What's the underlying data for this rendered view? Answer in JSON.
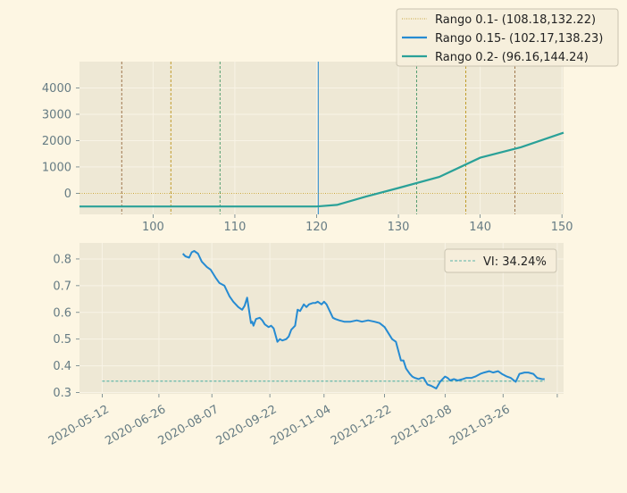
{
  "colors": {
    "background": "#fdf6e3",
    "axes_bg": "#eee8d5",
    "grid": "#f8f3e6",
    "tick_text": "#657b83",
    "legend_bg": "#f5eedb",
    "legend_border": "#c9c3b0",
    "blue": "#268bd2",
    "teal": "#2aa198",
    "olive": "#b58900",
    "brown": "#8b5a2b",
    "green": "#2e8b57"
  },
  "chart_data": [
    {
      "type": "line",
      "title": "",
      "xlabel": "",
      "ylabel": "",
      "xlim": [
        91,
        150.2
      ],
      "ylim": [
        -800,
        5000
      ],
      "xticks": [
        100,
        110,
        120,
        130,
        140,
        150
      ],
      "yticks": [
        0,
        1000,
        2000,
        3000,
        4000
      ],
      "grid": true,
      "legend": {
        "placement": "top-right"
      },
      "series": [
        {
          "name": "Rango 0.1- (108.18,132.22)",
          "color": "#b58900",
          "style": "dotted",
          "x": [
            91,
            150.2
          ],
          "y": [
            0,
            0
          ]
        },
        {
          "name": "Rango 0.15- (102.17,138.23)",
          "color": "#268bd2",
          "style": "solid",
          "x": [],
          "y": []
        },
        {
          "name": "Rango 0.2- (96.16,144.24)",
          "color": "#2aa198",
          "style": "solid",
          "x": [
            91,
            120,
            122.5,
            126,
            130,
            135,
            140,
            145,
            150.2
          ],
          "y": [
            -500,
            -500,
            -440,
            -130,
            200,
            620,
            1350,
            1750,
            2300
          ]
        }
      ],
      "vlines": [
        {
          "x": 96.16,
          "color": "#8b5a2b",
          "style": "dashed"
        },
        {
          "x": 102.17,
          "color": "#b58900",
          "style": "dashed"
        },
        {
          "x": 108.18,
          "color": "#2e8b57",
          "style": "dashed"
        },
        {
          "x": 120.2,
          "color": "#268bd2",
          "style": "solid"
        },
        {
          "x": 132.22,
          "color": "#2e8b57",
          "style": "dashed"
        },
        {
          "x": 138.23,
          "color": "#b58900",
          "style": "dashed"
        },
        {
          "x": 144.24,
          "color": "#8b5a2b",
          "style": "dashed"
        }
      ]
    },
    {
      "type": "line",
      "title": "",
      "xlabel": "",
      "ylabel": "",
      "xlim": [
        "2020-04-24",
        "2021-05-13"
      ],
      "ylim": [
        0.295,
        0.86
      ],
      "xticks": [
        "2020-05-12",
        "2020-06-26",
        "2020-08-07",
        "2020-09-22",
        "2020-11-04",
        "2020-12-22",
        "2021-02-08",
        "2021-03-26",
        ""
      ],
      "extra_xtick_date": "2021-05-08",
      "yticks": [
        0.3,
        0.4,
        0.5,
        0.6,
        0.7,
        0.8
      ],
      "grid": true,
      "legend": {
        "placement": "top-right"
      },
      "reference_line": {
        "name": "VI: 34.24%",
        "value": 0.3424,
        "x": [
          "2020-05-12",
          "2021-04-28"
        ],
        "color": "#2aa198",
        "style": "dashed"
      },
      "series": [
        {
          "name": "",
          "color": "#268bd2",
          "x": [
            "2020-07-15",
            "2020-07-17",
            "2020-07-20",
            "2020-07-22",
            "2020-07-24",
            "2020-07-27",
            "2020-07-30",
            "2020-08-03",
            "2020-08-06",
            "2020-08-10",
            "2020-08-13",
            "2020-08-17",
            "2020-08-19",
            "2020-08-21",
            "2020-08-24",
            "2020-08-26",
            "2020-08-28",
            "2020-08-31",
            "2020-09-02",
            "2020-09-04",
            "2020-09-07",
            "2020-09-08",
            "2020-09-09",
            "2020-09-11",
            "2020-09-14",
            "2020-09-16",
            "2020-09-18",
            "2020-09-21",
            "2020-09-23",
            "2020-09-25",
            "2020-09-28",
            "2020-09-30",
            "2020-10-02",
            "2020-10-05",
            "2020-10-07",
            "2020-10-09",
            "2020-10-12",
            "2020-10-14",
            "2020-10-16",
            "2020-10-19",
            "2020-10-21",
            "2020-10-23",
            "2020-10-26",
            "2020-10-28",
            "2020-10-30",
            "2020-11-02",
            "2020-11-04",
            "2020-11-06",
            "2020-11-09",
            "2020-11-11",
            "2020-11-13",
            "2020-11-16",
            "2020-11-20",
            "2020-11-25",
            "2020-11-30",
            "2020-12-04",
            "2020-12-09",
            "2020-12-14",
            "2020-12-18",
            "2020-12-22",
            "2020-12-28",
            "2020-12-31",
            "2021-01-04",
            "2021-01-06",
            "2021-01-08",
            "2021-01-11",
            "2021-01-13",
            "2021-01-15",
            "2021-01-18",
            "2021-01-20",
            "2021-01-22",
            "2021-01-25",
            "2021-01-28",
            "2021-02-01",
            "2021-02-04",
            "2021-02-08",
            "2021-02-10",
            "2021-02-12",
            "2021-02-15",
            "2021-02-18",
            "2021-02-22",
            "2021-02-25",
            "2021-03-01",
            "2021-03-04",
            "2021-03-08",
            "2021-03-11",
            "2021-03-15",
            "2021-03-18",
            "2021-03-22",
            "2021-03-25",
            "2021-03-29",
            "2021-04-01",
            "2021-04-05",
            "2021-04-08",
            "2021-04-12",
            "2021-04-15",
            "2021-04-19",
            "2021-04-22",
            "2021-04-26",
            "2021-04-28"
          ],
          "y": [
            0.82,
            0.81,
            0.805,
            0.825,
            0.83,
            0.82,
            0.79,
            0.77,
            0.76,
            0.73,
            0.71,
            0.7,
            0.68,
            0.66,
            0.64,
            0.63,
            0.62,
            0.61,
            0.625,
            0.655,
            0.56,
            0.565,
            0.55,
            0.575,
            0.58,
            0.57,
            0.555,
            0.545,
            0.55,
            0.54,
            0.49,
            0.5,
            0.495,
            0.5,
            0.51,
            0.535,
            0.55,
            0.61,
            0.605,
            0.63,
            0.62,
            0.63,
            0.635,
            0.635,
            0.64,
            0.63,
            0.64,
            0.63,
            0.6,
            0.58,
            0.575,
            0.57,
            0.565,
            0.565,
            0.57,
            0.565,
            0.57,
            0.565,
            0.56,
            0.545,
            0.5,
            0.49,
            0.42,
            0.42,
            0.39,
            0.37,
            0.36,
            0.355,
            0.35,
            0.355,
            0.355,
            0.33,
            0.325,
            0.315,
            0.34,
            0.36,
            0.355,
            0.345,
            0.35,
            0.345,
            0.35,
            0.355,
            0.355,
            0.36,
            0.37,
            0.375,
            0.38,
            0.375,
            0.38,
            0.37,
            0.36,
            0.355,
            0.34,
            0.37,
            0.375,
            0.375,
            0.37,
            0.355,
            0.35,
            0.35
          ]
        }
      ]
    }
  ]
}
